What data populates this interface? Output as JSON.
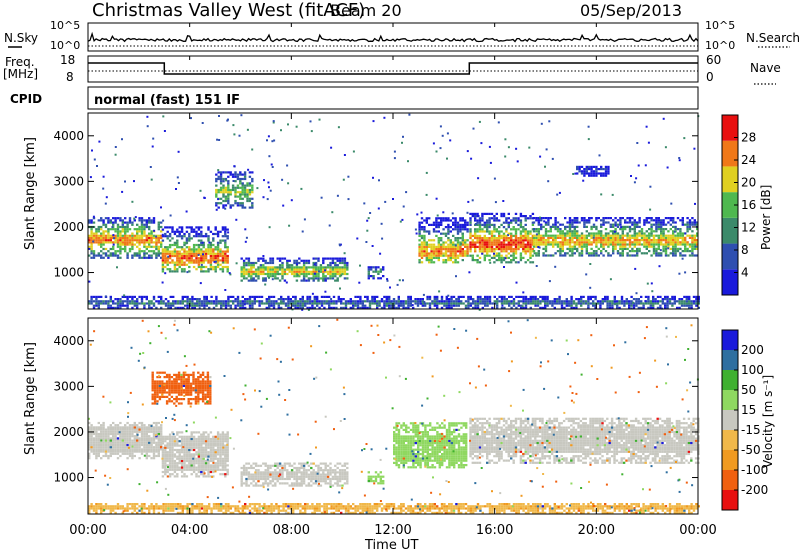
{
  "header": {
    "title": "Christmas Valley West (fitACF)",
    "beam": "Beam 20",
    "date": "05/Sep/2013"
  },
  "noise_panel": {
    "left_label": "N.Sky",
    "left_ticks": [
      "10^5",
      "10^0"
    ],
    "right_label": "N.Search",
    "right_ticks": [
      "10^5",
      "10^0"
    ]
  },
  "freq_panel": {
    "left_label_line1": "Freq.",
    "left_label_line2": "[MHz]",
    "left_ticks": [
      "18",
      "8"
    ],
    "right_label": "Nave",
    "right_ticks": [
      "60",
      "0"
    ]
  },
  "cpid": {
    "label": "CPID",
    "mode": "normal (fast) 151 IF"
  },
  "x_axis": {
    "label": "Time UT",
    "ticks": [
      "00:00",
      "04:00",
      "08:00",
      "12:00",
      "16:00",
      "20:00",
      "00:00"
    ]
  },
  "chart_data": [
    {
      "type": "heatmap",
      "name": "power",
      "x": "Time UT (hours)",
      "y": "Slant Range [km]",
      "xlim": [
        0,
        24
      ],
      "ylim": [
        200,
        4500
      ],
      "ylabel": "Slant Range [km]",
      "yticks": [
        "1000",
        "2000",
        "3000",
        "4000"
      ],
      "colorbar_label": "Power [dB]",
      "colorbar_ticks": [
        "4",
        "8",
        "12",
        "16",
        "20",
        "24",
        "28"
      ],
      "colorbar_range": [
        0,
        32
      ],
      "colors": [
        "#1a1adb",
        "#2f4fb0",
        "#3b8a6a",
        "#4fb84f",
        "#e0d020",
        "#f07818",
        "#e81010"
      ],
      "regions": [
        {
          "t0": 0.0,
          "t1": 2.9,
          "r0": 1300,
          "r1": 2200,
          "core": [
            1600,
            1800
          ],
          "peak": 26
        },
        {
          "t0": 2.9,
          "t1": 5.5,
          "r0": 1000,
          "r1": 2000,
          "core": [
            1150,
            1450
          ],
          "peak": 28
        },
        {
          "t0": 5.0,
          "t1": 6.5,
          "r0": 2400,
          "r1": 3200,
          "core": [
            2700,
            2800
          ],
          "peak": 18
        },
        {
          "t0": 6.0,
          "t1": 10.2,
          "r0": 800,
          "r1": 1300,
          "core": [
            900,
            1100
          ],
          "peak": 22
        },
        {
          "t0": 11.0,
          "t1": 11.6,
          "r0": 850,
          "r1": 1100,
          "core": [
            950,
            1000
          ],
          "peak": 14
        },
        {
          "t0": 13.0,
          "t1": 14.9,
          "r0": 1200,
          "r1": 2200,
          "core": [
            1300,
            1600
          ],
          "peak": 26
        },
        {
          "t0": 15.0,
          "t1": 17.5,
          "r0": 1200,
          "r1": 2300,
          "core": [
            1450,
            1750
          ],
          "peak": 29
        },
        {
          "t0": 17.5,
          "t1": 24.0,
          "r0": 1350,
          "r1": 2200,
          "core": [
            1550,
            1800
          ],
          "peak": 24
        },
        {
          "t0": 19.2,
          "t1": 20.5,
          "r0": 3100,
          "r1": 3300,
          "core": [
            3200,
            3250
          ],
          "peak": 6
        },
        {
          "t0": 0.0,
          "t1": 24.0,
          "r0": 200,
          "r1": 450,
          "core": [
            250,
            350
          ],
          "peak": 10
        }
      ]
    },
    {
      "type": "heatmap",
      "name": "velocity",
      "x": "Time UT (hours)",
      "y": "Slant Range [km]",
      "xlim": [
        0,
        24
      ],
      "ylim": [
        200,
        4500
      ],
      "ylabel": "Slant Range [km]",
      "yticks": [
        "1000",
        "2000",
        "3000",
        "4000"
      ],
      "colorbar_label": "Velocity [m s⁻¹]",
      "colorbar_ticks": [
        "200",
        "100",
        "50",
        "15",
        "-15",
        "-50",
        "-100",
        "-200"
      ],
      "colorbar_range": [
        -250,
        250
      ],
      "colors": [
        "#e81010",
        "#f06010",
        "#f09a20",
        "#f0b84a",
        "#c8c8c0",
        "#8fd860",
        "#3fb030",
        "#2f6fa0",
        "#1a1adb"
      ],
      "regions": [
        {
          "t0": 0.0,
          "t1": 2.9,
          "r0": 1400,
          "r1": 2200,
          "core": [
            1500,
            2100
          ],
          "peak": 0
        },
        {
          "t0": 2.9,
          "t1": 5.5,
          "r0": 1000,
          "r1": 2000,
          "core": [
            1100,
            1900
          ],
          "peak": 0
        },
        {
          "t0": 2.5,
          "t1": 4.8,
          "r0": 2600,
          "r1": 3300,
          "core": [
            2800,
            3100
          ],
          "peak": -120
        },
        {
          "t0": 6.0,
          "t1": 10.2,
          "r0": 800,
          "r1": 1300,
          "core": [
            900,
            1100
          ],
          "peak": 0
        },
        {
          "t0": 11.0,
          "t1": 11.6,
          "r0": 850,
          "r1": 1100,
          "core": [
            950,
            1000
          ],
          "peak": 40
        },
        {
          "t0": 12.0,
          "t1": 14.9,
          "r0": 1200,
          "r1": 2200,
          "core": [
            1300,
            1900
          ],
          "peak": 30
        },
        {
          "t0": 15.0,
          "t1": 24.0,
          "r0": 1300,
          "r1": 2300,
          "core": [
            1500,
            2100
          ],
          "peak": 0
        },
        {
          "t0": 0.0,
          "t1": 24.0,
          "r0": 200,
          "r1": 400,
          "core": [
            250,
            350
          ],
          "peak": -40
        }
      ]
    }
  ]
}
